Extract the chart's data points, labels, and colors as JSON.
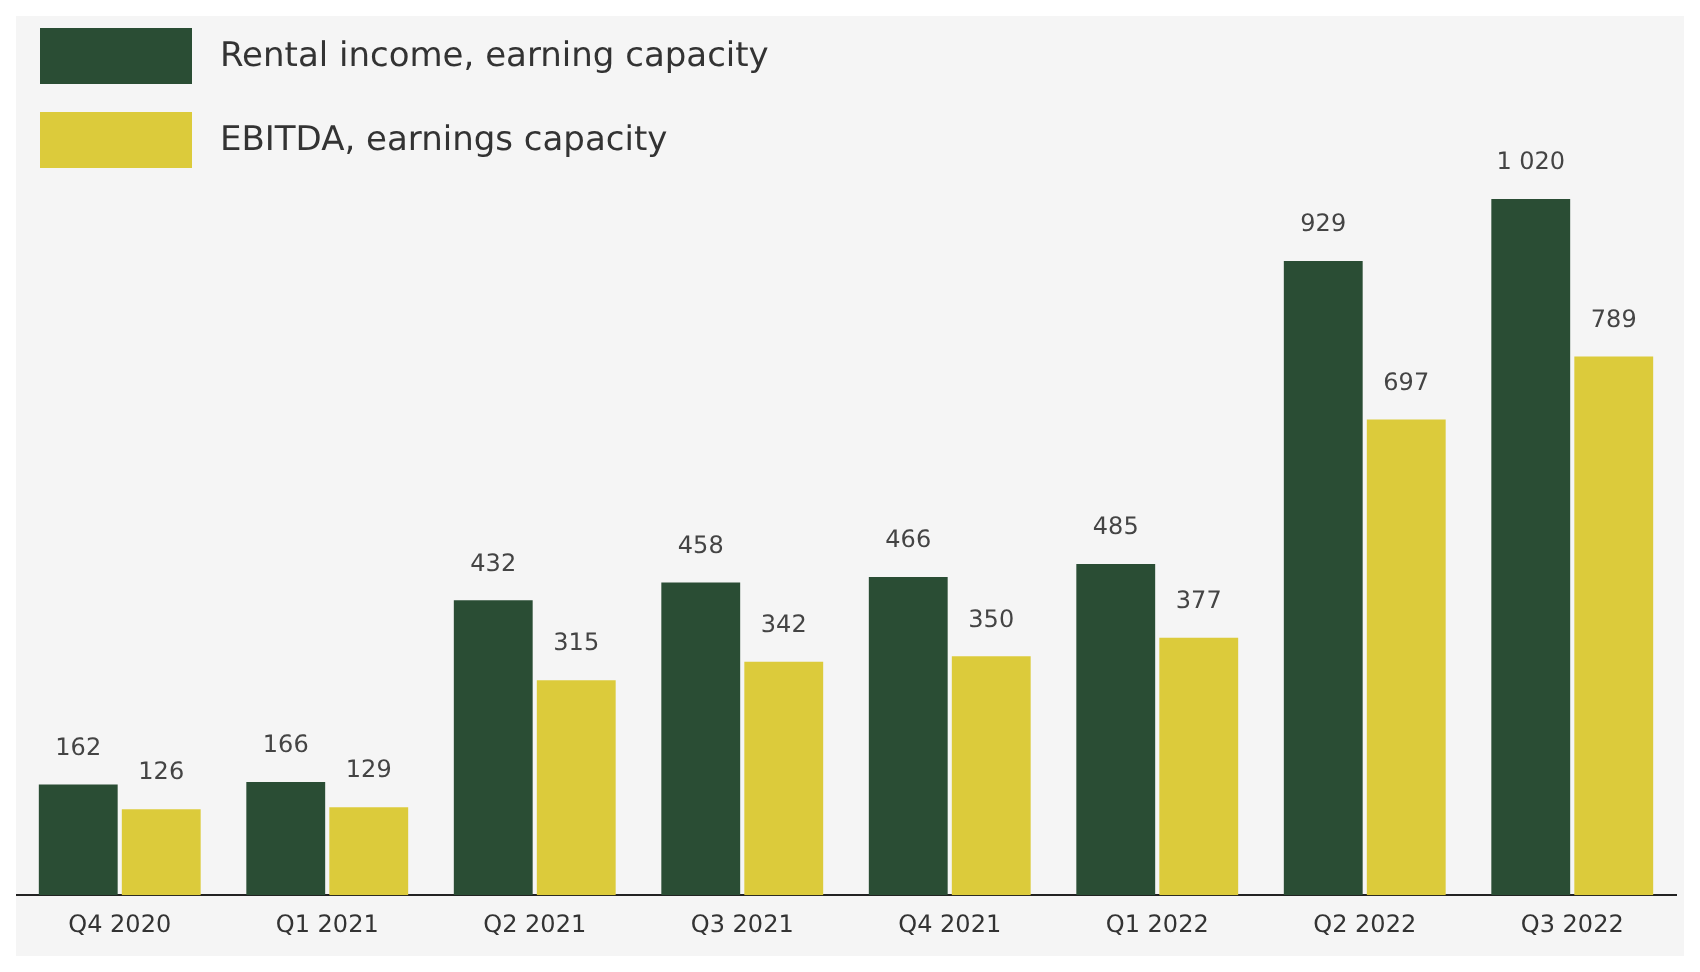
{
  "chart_data": {
    "type": "bar",
    "categories": [
      "Q4 2020",
      "Q1 2021",
      "Q2 2021",
      "Q3 2021",
      "Q4 2021",
      "Q1 2022",
      "Q2 2022",
      "Q3 2022"
    ],
    "series": [
      {
        "name": "Rental income, earning capacity",
        "color": "#2a4d34",
        "values": [
          162,
          166,
          432,
          458,
          466,
          485,
          929,
          1020
        ],
        "value_labels": [
          "162",
          "166",
          "432",
          "458",
          "466",
          "485",
          "929",
          "1 020"
        ]
      },
      {
        "name": "EBITDA, earnings capacity",
        "color": "#dccb3b",
        "values": [
          126,
          129,
          315,
          342,
          350,
          377,
          697,
          789
        ],
        "value_labels": [
          "126",
          "129",
          "315",
          "342",
          "350",
          "377",
          "697",
          "789"
        ]
      }
    ],
    "legend": "top left",
    "grid": false
  }
}
